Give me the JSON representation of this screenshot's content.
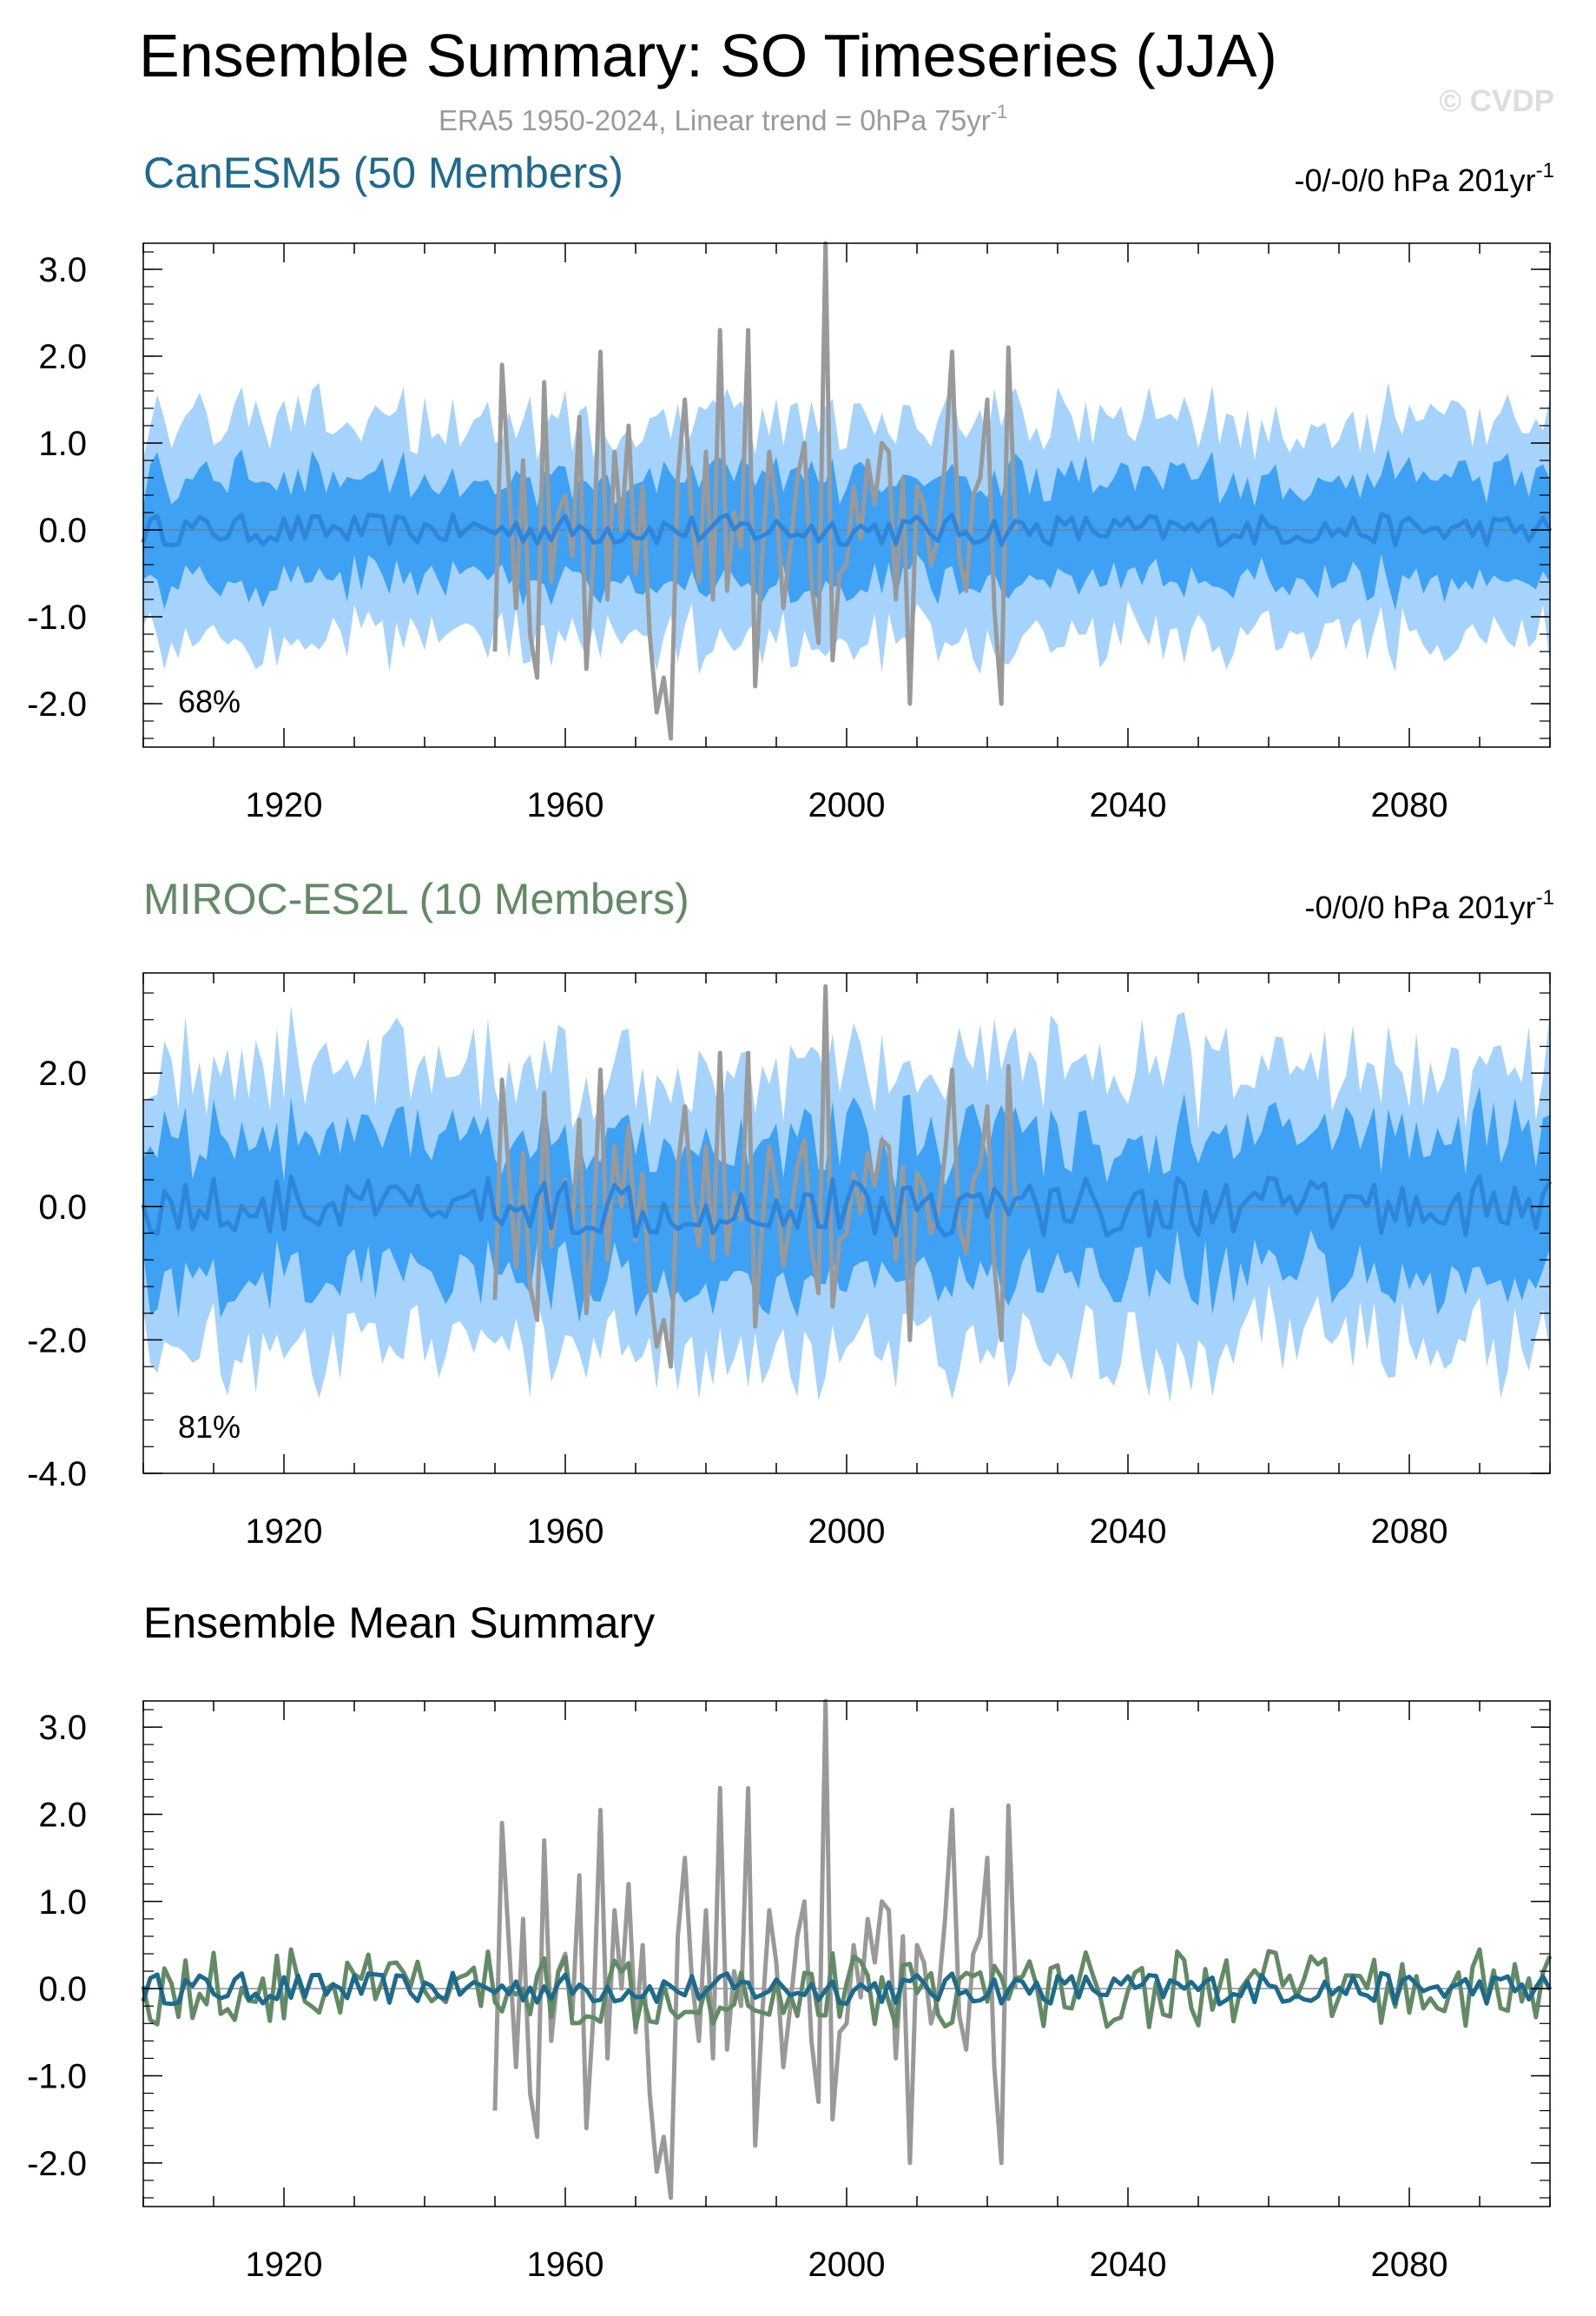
{
  "figure": {
    "title": "Ensemble Summary: SO Timeseries (JJA)",
    "subtitle_main": "ERA5 1950-2024, Linear trend = 0hPa 75yr",
    "subtitle_sup": "-1",
    "watermark": "© CVDP"
  },
  "colors": {
    "band_outer": "#a6d3fb",
    "band_inner": "#3ea1f4",
    "ens_mean_line": "#2e86dc",
    "obs": "#999999",
    "canesm5": "#1e6a8c",
    "miroc": "#628a64",
    "axis": "#000000"
  },
  "chart_data": [
    {
      "type": "area",
      "name": "CanESM5 (50 Members)",
      "title": "CanESM5 (50 Members)",
      "trend_main": "-0/-0/0 hPa 201yr",
      "trend_sup": "-1",
      "percent_label": "68%",
      "xlim": [
        1900,
        2100
      ],
      "ylim": [
        -2.5,
        3.3
      ],
      "xticks": [
        "1920",
        "1960",
        "2000",
        "2040",
        "2080"
      ],
      "yticks": [
        "3.0",
        "2.0",
        "1.0",
        "0.0",
        "-1.0",
        "-2.0"
      ],
      "x": [
        1900,
        2100
      ],
      "series": [
        {
          "name": "ensemble mean",
          "mean": 0.0,
          "amplitude": 0.18
        },
        {
          "name": "inner band (25-75%)",
          "half_width": 0.6
        },
        {
          "name": "outer band (min-max)",
          "half_width": 1.25
        },
        {
          "name": "ERA5",
          "x_range": [
            1950,
            2024
          ]
        }
      ]
    },
    {
      "type": "area",
      "name": "MIROC-ES2L (10 Members)",
      "title": "MIROC-ES2L (10 Members)",
      "trend_main": "-0/0/0 hPa 201yr",
      "trend_sup": "-1",
      "percent_label": "81%",
      "xlim": [
        1900,
        2100
      ],
      "ylim": [
        -4.0,
        3.5
      ],
      "xticks": [
        "1920",
        "1960",
        "2000",
        "2040",
        "2080"
      ],
      "yticks": [
        "2.0",
        "0.0",
        "-2.0",
        "-4.0"
      ],
      "x": [
        1900,
        2100
      ],
      "series": [
        {
          "name": "ensemble mean",
          "mean": 0.0,
          "amplitude": 0.45
        },
        {
          "name": "inner band (25-75%)",
          "half_width": 1.05
        },
        {
          "name": "outer band (min-max)",
          "half_width": 2.1
        },
        {
          "name": "ERA5",
          "x_range": [
            1950,
            2024
          ]
        }
      ]
    },
    {
      "type": "line",
      "name": "Ensemble Mean Summary",
      "title": "Ensemble Mean Summary",
      "xlim": [
        1900,
        2100
      ],
      "ylim": [
        -2.5,
        3.3
      ],
      "xticks": [
        "1920",
        "1960",
        "2000",
        "2040",
        "2080"
      ],
      "yticks": [
        "3.0",
        "2.0",
        "1.0",
        "0.0",
        "-1.0",
        "-2.0"
      ],
      "series": [
        {
          "name": "ERA5",
          "x_range": [
            1950,
            2024
          ]
        },
        {
          "name": "CanESM5",
          "x_range": [
            1900,
            2100
          ],
          "amplitude": 0.18
        },
        {
          "name": "MIROC-ES2L",
          "x_range": [
            1900,
            2100
          ],
          "amplitude": 0.45
        }
      ]
    }
  ],
  "obs_series": {
    "name": "ERA5",
    "x": [
      1950,
      1951,
      1952,
      1953,
      1954,
      1955,
      1956,
      1957,
      1958,
      1959,
      1960,
      1961,
      1962,
      1963,
      1964,
      1965,
      1966,
      1967,
      1968,
      1969,
      1970,
      1971,
      1972,
      1973,
      1974,
      1975,
      1976,
      1977,
      1978,
      1979,
      1980,
      1981,
      1982,
      1983,
      1984,
      1985,
      1986,
      1987,
      1988,
      1989,
      1990,
      1991,
      1992,
      1993,
      1994,
      1995,
      1996,
      1997,
      1998,
      1999,
      2000,
      2001,
      2002,
      2003,
      2004,
      2005,
      2006,
      2007,
      2008,
      2009,
      2010,
      2011,
      2012,
      2013,
      2014,
      2015,
      2016,
      2017,
      2018,
      2019,
      2020,
      2021,
      2022,
      2023,
      2024
    ],
    "y": [
      -1.4,
      1.9,
      0.5,
      -0.9,
      0.8,
      -1.2,
      -1.7,
      1.7,
      -0.6,
      0.2,
      0.4,
      -0.3,
      1.3,
      -1.6,
      -0.3,
      2.05,
      -0.8,
      0.9,
      0.0,
      1.2,
      -0.5,
      0.5,
      -1.2,
      -2.1,
      -1.7,
      -2.4,
      0.6,
      1.5,
      0.1,
      -0.6,
      0.9,
      -0.8,
      2.3,
      -0.7,
      0.2,
      -0.2,
      2.3,
      -1.8,
      -0.3,
      0.9,
      0.3,
      -0.9,
      -0.2,
      0.6,
      1.0,
      -0.6,
      -1.3,
      3.3,
      -1.5,
      -0.5,
      -0.4,
      0.5,
      -0.1,
      0.8,
      0.3,
      1.0,
      0.9,
      -0.8,
      0.6,
      -2.0,
      0.5,
      0.3,
      -0.4,
      -0.1,
      0.8,
      2.05,
      -0.3,
      -0.7,
      0.4,
      0.6,
      1.5,
      -0.9,
      -2.0,
      2.1,
      0.0
    ]
  }
}
